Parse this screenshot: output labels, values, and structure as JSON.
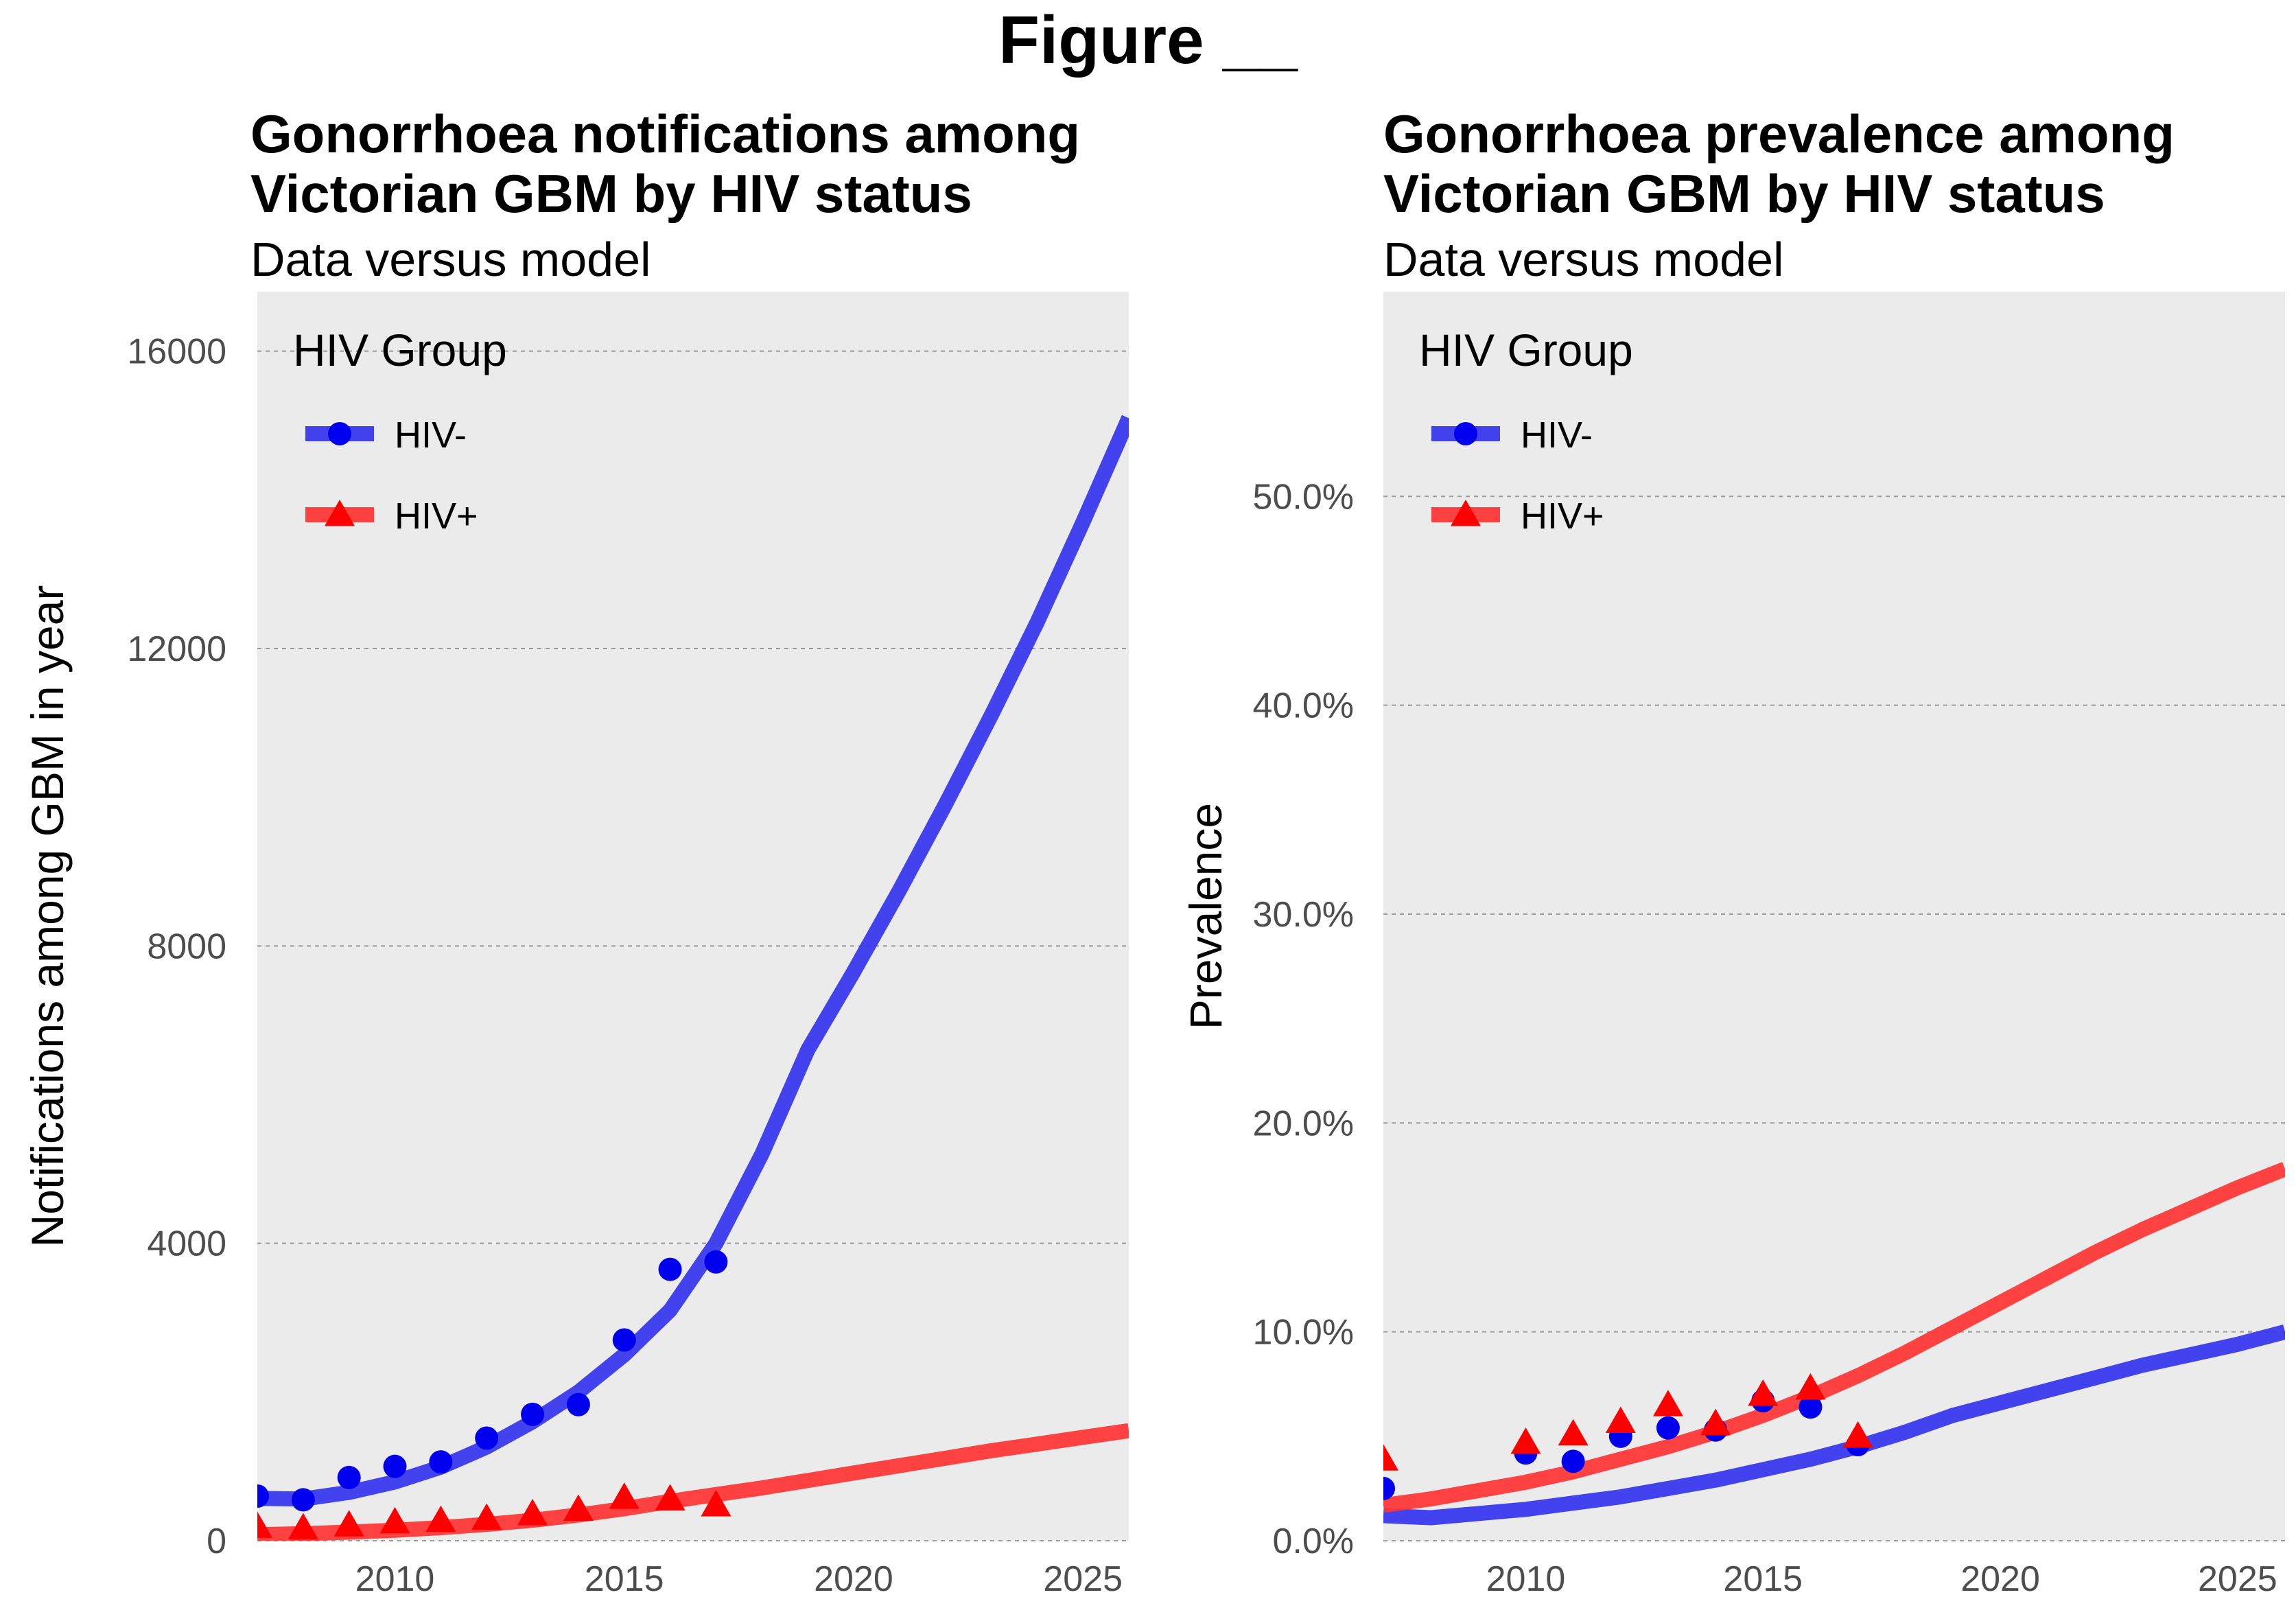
{
  "figure_title": "Figure __",
  "chart_data": [
    {
      "type": "line",
      "title": "Gonorrhoea notifications among Victorian GBM by HIV status",
      "title_lines": [
        "Gonorrhoea notifications among",
        "Victorian GBM by HIV status"
      ],
      "subtitle": "Data versus model",
      "xlabel": "",
      "ylabel": "Notifications among GBM in year",
      "xlim": [
        2007,
        2026
      ],
      "ylim": [
        0,
        16800
      ],
      "xticks": [
        2010,
        2015,
        2020,
        2025
      ],
      "yticks": [
        0,
        4000,
        8000,
        12000,
        16000
      ],
      "ytick_labels": [
        "0",
        "4000",
        "8000",
        "12000",
        "16000"
      ],
      "legend": {
        "title": "HIV Group",
        "position": "top-left",
        "entries": [
          "HIV-",
          "HIV+"
        ]
      },
      "series": [
        {
          "name": "HIV-",
          "color": "#3333ee",
          "point_color": "#0000ee",
          "marker": "circle",
          "model": {
            "x": [
              2007,
              2008,
              2009,
              2010,
              2011,
              2012,
              2013,
              2014,
              2015,
              2016,
              2017,
              2018,
              2019,
              2020,
              2021,
              2022,
              2023,
              2024,
              2025,
              2026
            ],
            "y": [
              570,
              560,
              650,
              790,
              990,
              1260,
              1600,
              2000,
              2500,
              3100,
              4000,
              5200,
              6600,
              7650,
              8750,
              9900,
              11100,
              12350,
              13700,
              15100
            ]
          },
          "data": {
            "x": [
              2007,
              2008,
              2009,
              2010,
              2011,
              2012,
              2013,
              2014,
              2015,
              2016,
              2017
            ],
            "y": [
              600,
              550,
              850,
              1000,
              1060,
              1380,
              1700,
              1830,
              2700,
              3650,
              3750
            ]
          }
        },
        {
          "name": "HIV+",
          "color": "#ff3333",
          "point_color": "#ff0000",
          "marker": "triangle",
          "model": {
            "x": [
              2007,
              2008,
              2009,
              2010,
              2011,
              2012,
              2013,
              2014,
              2015,
              2016,
              2017,
              2018,
              2019,
              2020,
              2021,
              2022,
              2023,
              2024,
              2025,
              2026
            ],
            "y": [
              80,
              95,
              115,
              140,
              175,
              220,
              275,
              345,
              430,
              530,
              620,
              710,
              810,
              910,
              1010,
              1110,
              1210,
              1300,
              1390,
              1480
            ]
          },
          "data": {
            "x": [
              2007,
              2008,
              2009,
              2010,
              2011,
              2012,
              2013,
              2014,
              2015,
              2016,
              2017
            ],
            "y": [
              190,
              170,
              210,
              250,
              270,
              300,
              360,
              420,
              580,
              560,
              480
            ]
          }
        }
      ]
    },
    {
      "type": "line",
      "title": "Gonorrhoea prevalence among Victorian GBM by HIV status",
      "title_lines": [
        "Gonorrhoea prevalence among",
        "Victorian GBM by HIV status"
      ],
      "subtitle": "Data versus model",
      "xlabel": "",
      "ylabel": "Prevalence",
      "xlim": [
        2007,
        2026
      ],
      "ylim": [
        0,
        0.598
      ],
      "xticks": [
        2010,
        2015,
        2020,
        2025
      ],
      "yticks": [
        0,
        0.1,
        0.2,
        0.3,
        0.4,
        0.5
      ],
      "ytick_labels": [
        "0.0%",
        "10.0%",
        "20.0%",
        "30.0%",
        "40.0%",
        "50.0%"
      ],
      "legend": {
        "title": "HIV Group",
        "position": "top-left",
        "entries": [
          "HIV-",
          "HIV+"
        ]
      },
      "series": [
        {
          "name": "HIV-",
          "color": "#3333ee",
          "point_color": "#0000ee",
          "marker": "circle",
          "model": {
            "x": [
              2007,
              2008,
              2009,
              2010,
              2011,
              2012,
              2013,
              2014,
              2015,
              2016,
              2017,
              2018,
              2019,
              2020,
              2021,
              2022,
              2023,
              2024,
              2025,
              2026
            ],
            "y": [
              0.012,
              0.011,
              0.013,
              0.015,
              0.018,
              0.021,
              0.025,
              0.029,
              0.034,
              0.039,
              0.045,
              0.052,
              0.06,
              0.066,
              0.072,
              0.078,
              0.084,
              0.089,
              0.094,
              0.1
            ]
          },
          "data": {
            "x": [
              2007,
              2010,
              2011,
              2012,
              2013,
              2014,
              2015,
              2016,
              2017
            ],
            "y": [
              0.025,
              0.042,
              0.038,
              0.05,
              0.054,
              0.053,
              0.067,
              0.064,
              0.046
            ]
          }
        },
        {
          "name": "HIV+",
          "color": "#ff3333",
          "point_color": "#ff0000",
          "marker": "triangle",
          "model": {
            "x": [
              2007,
              2008,
              2009,
              2010,
              2011,
              2012,
              2013,
              2014,
              2015,
              2016,
              2017,
              2018,
              2019,
              2020,
              2021,
              2022,
              2023,
              2024,
              2025,
              2026
            ],
            "y": [
              0.017,
              0.02,
              0.024,
              0.028,
              0.033,
              0.039,
              0.045,
              0.052,
              0.06,
              0.069,
              0.079,
              0.09,
              0.102,
              0.114,
              0.126,
              0.138,
              0.149,
              0.159,
              0.169,
              0.178
            ]
          },
          "data": {
            "x": [
              2007,
              2010,
              2011,
              2012,
              2013,
              2014,
              2015,
              2016,
              2017
            ],
            "y": [
              0.039,
              0.047,
              0.051,
              0.057,
              0.065,
              0.056,
              0.07,
              0.073,
              0.05
            ]
          }
        }
      ]
    }
  ]
}
